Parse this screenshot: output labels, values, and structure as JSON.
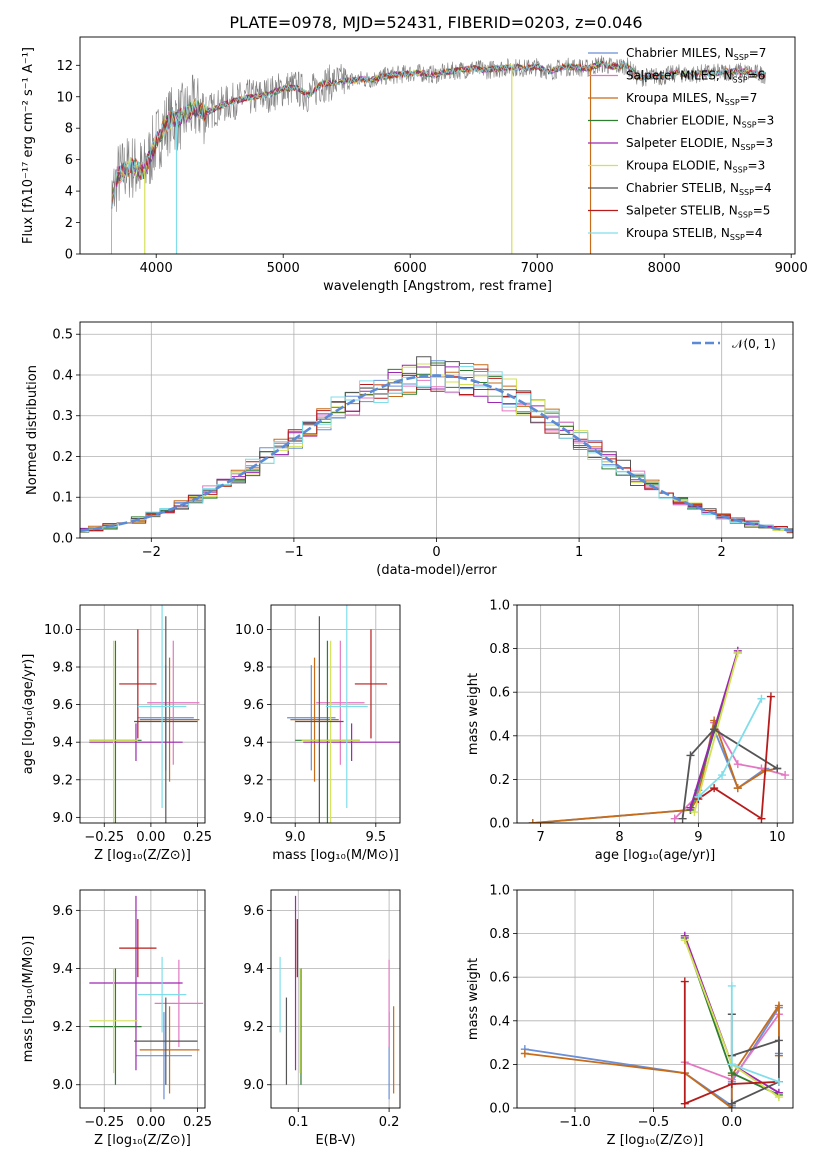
{
  "chart_data": [
    {
      "id": "spectrum",
      "type": "line",
      "title": "PLATE=0978, MJD=52431, FIBERID=0203, z=0.046",
      "xlabel": "wavelength [Angstrom, rest frame]",
      "ylabel": "Flux [fλ10⁻¹⁷ erg cm⁻² s⁻¹ A⁻¹]",
      "xlim": [
        3400,
        9030
      ],
      "ylim": [
        0,
        13.8
      ],
      "xticks": [
        4000,
        5000,
        6000,
        7000,
        8000,
        9000
      ],
      "yticks": [
        0,
        2,
        4,
        6,
        8,
        10,
        12
      ],
      "data_series_name": "",
      "data_envelope": [
        [
          3650,
          3.5
        ],
        [
          3700,
          5.0
        ],
        [
          3800,
          5.6
        ],
        [
          3900,
          5.2
        ],
        [
          4000,
          7.2
        ],
        [
          4100,
          8.5
        ],
        [
          4200,
          8.7
        ],
        [
          4300,
          9.3
        ],
        [
          4400,
          9.0
        ],
        [
          4500,
          9.4
        ],
        [
          4600,
          9.7
        ],
        [
          4700,
          9.9
        ],
        [
          4800,
          10.0
        ],
        [
          4900,
          10.2
        ],
        [
          5000,
          10.5
        ],
        [
          5100,
          10.6
        ],
        [
          5200,
          10.1
        ],
        [
          5300,
          10.8
        ],
        [
          5400,
          10.9
        ],
        [
          5500,
          11.0
        ],
        [
          5600,
          11.1
        ],
        [
          5700,
          11.1
        ],
        [
          5800,
          11.3
        ],
        [
          5900,
          11.4
        ],
        [
          6000,
          11.5
        ],
        [
          6100,
          11.5
        ],
        [
          6200,
          11.4
        ],
        [
          6300,
          11.6
        ],
        [
          6400,
          11.7
        ],
        [
          6500,
          11.8
        ],
        [
          6600,
          11.7
        ],
        [
          6700,
          11.8
        ],
        [
          6800,
          11.9
        ],
        [
          6900,
          11.8
        ],
        [
          7000,
          11.9
        ],
        [
          7100,
          11.6
        ],
        [
          7200,
          11.9
        ],
        [
          7300,
          11.9
        ],
        [
          7400,
          11.8
        ],
        [
          7500,
          12.1
        ],
        [
          7600,
          11.9
        ],
        [
          7700,
          12.0
        ],
        [
          7800,
          11.2
        ],
        [
          7900,
          11.3
        ],
        [
          8000,
          11.3
        ],
        [
          8100,
          11.5
        ],
        [
          8200,
          11.4
        ],
        [
          8300,
          11.5
        ],
        [
          8400,
          11.5
        ],
        [
          8500,
          11.6
        ],
        [
          8600,
          11.6
        ],
        [
          8700,
          11.5
        ],
        [
          8800,
          11.4
        ]
      ],
      "legend": [
        {
          "label": "Chabrier MILES, N",
          "sub": "SSP",
          "suffix": "=7",
          "color": "#6a8fd6"
        },
        {
          "label": "Salpeter MILES, N",
          "sub": "SSP",
          "suffix": "=6",
          "color": "#e377c2"
        },
        {
          "label": "Kroupa MILES, N",
          "sub": "SSP",
          "suffix": "=7",
          "color": "#c66c1a"
        },
        {
          "label": "Chabrier ELODIE, N",
          "sub": "SSP",
          "suffix": "=3",
          "color": "#2e7d32"
        },
        {
          "label": "Salpeter ELODIE, N",
          "sub": "SSP",
          "suffix": "=3",
          "color": "#9c27b0"
        },
        {
          "label": "Kroupa ELODIE, N",
          "sub": "SSP",
          "suffix": "=3",
          "color": "#d4e157"
        },
        {
          "label": "Chabrier STELIB, N",
          "sub": "SSP",
          "suffix": "=4",
          "color": "#555555"
        },
        {
          "label": "Salpeter STELIB, N",
          "sub": "SSP",
          "suffix": "=5",
          "color": "#b71c1c"
        },
        {
          "label": "Kroupa STELIB, N",
          "sub": "SSP",
          "suffix": "=4",
          "color": "#80deea"
        }
      ]
    },
    {
      "id": "residuals",
      "type": "histogram",
      "xlabel": "(data-model)/error",
      "ylabel": "Normed distribution",
      "xlim": [
        -2.5,
        2.5
      ],
      "ylim": [
        0,
        0.53
      ],
      "xticks": [
        -2,
        -1,
        0,
        1,
        2
      ],
      "yticks": [
        0.0,
        0.1,
        0.2,
        0.3,
        0.4,
        0.5
      ],
      "legend": "𝒩(0, 1)",
      "normal_curve": {
        "mean": 0,
        "sigma": 1
      }
    },
    {
      "id": "age-vs-Z",
      "type": "errorbar",
      "xlabel": "Z [log₁₀(Z/Z⊙)]",
      "ylabel": "age  [log₁₀(age/yr)]",
      "xlim": [
        -0.38,
        0.29
      ],
      "ylim": [
        8.97,
        10.13
      ],
      "xticks": [
        -0.25,
        0.0,
        0.25
      ],
      "yticks": [
        9.0,
        9.2,
        9.4,
        9.6,
        9.8,
        10.0
      ],
      "points": [
        {
          "model": "Chabrier MILES",
          "x": 0.08,
          "xerr": 0.15,
          "y": 9.53,
          "yerr": 0.28
        },
        {
          "model": "Salpeter MILES",
          "x": 0.12,
          "xerr": 0.14,
          "y": 9.61,
          "yerr": 0.33
        },
        {
          "model": "Kroupa MILES",
          "x": 0.1,
          "xerr": 0.16,
          "y": 9.52,
          "yerr": 0.33
        },
        {
          "model": "Chabrier ELODIE",
          "x": -0.19,
          "xerr": 0.14,
          "y": 9.41,
          "yerr": 0.53
        },
        {
          "model": "Salpeter ELODIE",
          "x": -0.08,
          "xerr": 0.25,
          "y": 9.4,
          "yerr": 0.1
        },
        {
          "model": "Kroupa ELODIE",
          "x": -0.2,
          "xerr": 0.13,
          "y": 9.41,
          "yerr": 0.53
        },
        {
          "model": "Chabrier STELIB",
          "x": 0.08,
          "xerr": 0.17,
          "y": 9.51,
          "yerr": 0.56
        },
        {
          "model": "Salpeter STELIB",
          "x": -0.07,
          "xerr": 0.1,
          "y": 9.71,
          "yerr": 0.29
        },
        {
          "model": "Kroupa STELIB",
          "x": 0.06,
          "xerr": 0.13,
          "y": 9.59,
          "yerr": 0.54
        }
      ]
    },
    {
      "id": "age-vs-mass",
      "type": "errorbar",
      "xlabel": "mass [log₁₀(M/M⊙)]",
      "ylabel": "",
      "xlim": [
        8.85,
        9.65
      ],
      "ylim": [
        8.97,
        10.13
      ],
      "xticks": [
        9.0,
        9.5
      ],
      "yticks": [
        9.0,
        9.2,
        9.4,
        9.6,
        9.8,
        10.0
      ],
      "points": [
        {
          "model": "Chabrier MILES",
          "x": 9.1,
          "xerr": 0.15,
          "y": 9.53,
          "yerr": 0.28
        },
        {
          "model": "Salpeter MILES",
          "x": 9.28,
          "xerr": 0.15,
          "y": 9.61,
          "yerr": 0.33
        },
        {
          "model": "Kroupa MILES",
          "x": 9.12,
          "xerr": 0.15,
          "y": 9.52,
          "yerr": 0.33
        },
        {
          "model": "Chabrier ELODIE",
          "x": 9.2,
          "xerr": 0.2,
          "y": 9.41,
          "yerr": 0.53
        },
        {
          "model": "Salpeter ELODIE",
          "x": 9.35,
          "xerr": 0.3,
          "y": 9.4,
          "yerr": 0.1
        },
        {
          "model": "Kroupa ELODIE",
          "x": 9.22,
          "xerr": 0.18,
          "y": 9.41,
          "yerr": 0.53
        },
        {
          "model": "Chabrier STELIB",
          "x": 9.15,
          "xerr": 0.15,
          "y": 9.51,
          "yerr": 0.56
        },
        {
          "model": "Salpeter STELIB",
          "x": 9.47,
          "xerr": 0.1,
          "y": 9.71,
          "yerr": 0.29
        },
        {
          "model": "Kroupa STELIB",
          "x": 9.32,
          "xerr": 0.13,
          "y": 9.59,
          "yerr": 0.54
        }
      ]
    },
    {
      "id": "weight-vs-age",
      "type": "line",
      "xlabel": "age  [log₁₀(age/yr)]",
      "ylabel": "mass weight",
      "xlim": [
        6.7,
        10.2
      ],
      "ylim": [
        0,
        1.0
      ],
      "xticks": [
        7,
        8,
        9,
        10
      ],
      "yticks": [
        0.0,
        0.2,
        0.4,
        0.6,
        0.8,
        1.0
      ],
      "series": [
        {
          "model": "Chabrier MILES",
          "points": [
            [
              6.9,
              0.0
            ],
            [
              8.9,
              0.06
            ],
            [
              9.0,
              0.15
            ],
            [
              9.2,
              0.43
            ],
            [
              9.5,
              0.16
            ],
            [
              9.85,
              0.25
            ]
          ]
        },
        {
          "model": "Salpeter MILES",
          "points": [
            [
              8.7,
              0.02
            ],
            [
              9.0,
              0.13
            ],
            [
              9.2,
              0.46
            ],
            [
              9.5,
              0.27
            ],
            [
              9.8,
              0.25
            ],
            [
              10.1,
              0.22
            ]
          ]
        },
        {
          "model": "Kroupa MILES",
          "points": [
            [
              6.9,
              0.0
            ],
            [
              8.9,
              0.06
            ],
            [
              9.0,
              0.12
            ],
            [
              9.2,
              0.47
            ],
            [
              9.5,
              0.16
            ],
            [
              9.85,
              0.24
            ],
            [
              10.0,
              0.25
            ]
          ]
        },
        {
          "model": "Chabrier ELODIE",
          "points": [
            [
              8.9,
              0.06
            ],
            [
              9.5,
              0.78
            ]
          ]
        },
        {
          "model": "Salpeter ELODIE",
          "points": [
            [
              8.9,
              0.07
            ],
            [
              9.5,
              0.79
            ]
          ]
        },
        {
          "model": "Kroupa ELODIE",
          "points": [
            [
              8.95,
              0.05
            ],
            [
              9.5,
              0.78
            ]
          ]
        },
        {
          "model": "Chabrier STELIB",
          "points": [
            [
              8.8,
              0.02
            ],
            [
              8.9,
              0.31
            ],
            [
              9.2,
              0.43
            ],
            [
              10.0,
              0.25
            ]
          ]
        },
        {
          "model": "Salpeter STELIB",
          "points": [
            [
              9.0,
              0.11
            ],
            [
              9.2,
              0.16
            ],
            [
              9.8,
              0.02
            ],
            [
              9.92,
              0.58
            ]
          ]
        },
        {
          "model": "Kroupa STELIB",
          "points": [
            [
              9.0,
              0.12
            ],
            [
              9.3,
              0.22
            ],
            [
              9.8,
              0.57
            ]
          ]
        }
      ]
    },
    {
      "id": "mass-vs-Z",
      "type": "errorbar",
      "xlabel": "Z [log₁₀(Z/Z⊙)]",
      "ylabel": "mass [log₁₀(M/M⊙)]",
      "xlim": [
        -0.38,
        0.29
      ],
      "ylim": [
        8.92,
        9.67
      ],
      "xticks": [
        -0.25,
        0.0,
        0.25
      ],
      "yticks": [
        9.0,
        9.2,
        9.4,
        9.6
      ],
      "points": [
        {
          "model": "Chabrier MILES",
          "x": 0.07,
          "xerr": 0.15,
          "y": 9.1,
          "yerr": 0.15
        },
        {
          "model": "Salpeter MILES",
          "x": 0.15,
          "xerr": 0.13,
          "y": 9.28,
          "yerr": 0.15
        },
        {
          "model": "Kroupa MILES",
          "x": 0.1,
          "xerr": 0.16,
          "y": 9.12,
          "yerr": 0.15
        },
        {
          "model": "Chabrier ELODIE",
          "x": -0.19,
          "xerr": 0.14,
          "y": 9.2,
          "yerr": 0.2
        },
        {
          "model": "Salpeter ELODIE",
          "x": -0.08,
          "xerr": 0.25,
          "y": 9.35,
          "yerr": 0.3
        },
        {
          "model": "Kroupa ELODIE",
          "x": -0.2,
          "xerr": 0.13,
          "y": 9.22,
          "yerr": 0.18
        },
        {
          "model": "Chabrier STELIB",
          "x": 0.08,
          "xerr": 0.17,
          "y": 9.15,
          "yerr": 0.15
        },
        {
          "model": "Salpeter STELIB",
          "x": -0.07,
          "xerr": 0.1,
          "y": 9.47,
          "yerr": 0.1
        },
        {
          "model": "Kroupa STELIB",
          "x": 0.06,
          "xerr": 0.13,
          "y": 9.31,
          "yerr": 0.13
        }
      ]
    },
    {
      "id": "mass-vs-ebv",
      "type": "errorbar",
      "xlabel": "E(B-V)",
      "ylabel": "",
      "xlim": [
        0.07,
        0.212
      ],
      "ylim": [
        8.92,
        9.67
      ],
      "xticks": [
        0.1,
        0.2
      ],
      "yticks": [
        9.0,
        9.2,
        9.4,
        9.6
      ],
      "points": [
        {
          "model": "Chabrier MILES",
          "x": 0.2,
          "y": 9.1,
          "yerr": 0.15
        },
        {
          "model": "Salpeter MILES",
          "x": 0.2,
          "y": 9.28,
          "yerr": 0.15
        },
        {
          "model": "Kroupa MILES",
          "x": 0.205,
          "y": 9.12,
          "yerr": 0.15
        },
        {
          "model": "Chabrier ELODIE",
          "x": 0.103,
          "y": 9.2,
          "yerr": 0.2
        },
        {
          "model": "Salpeter ELODIE",
          "x": 0.097,
          "y": 9.35,
          "yerr": 0.3
        },
        {
          "model": "Kroupa ELODIE",
          "x": 0.102,
          "y": 9.22,
          "yerr": 0.18
        },
        {
          "model": "Chabrier STELIB",
          "x": 0.087,
          "y": 9.15,
          "yerr": 0.15
        },
        {
          "model": "Salpeter STELIB",
          "x": 0.099,
          "y": 9.47,
          "yerr": 0.1
        },
        {
          "model": "Kroupa STELIB",
          "x": 0.08,
          "y": 9.31,
          "yerr": 0.13
        }
      ]
    },
    {
      "id": "weight-vs-Z",
      "type": "line",
      "xlabel": "Z [log₁₀(Z/Z⊙)]",
      "ylabel": "mass weight",
      "xlim": [
        -1.37,
        0.39
      ],
      "ylim": [
        0,
        1.0
      ],
      "xticks": [
        -1.0,
        -0.5,
        0.0
      ],
      "yticks": [
        0.0,
        0.2,
        0.4,
        0.6,
        0.8,
        1.0
      ],
      "series": [
        {
          "model": "Chabrier MILES",
          "points": [
            [
              -1.32,
              0.27
            ],
            [
              -0.3,
              0.16
            ],
            [
              0.0,
              0.01
            ],
            [
              0.0,
              0.12
            ],
            [
              0.3,
              0.46
            ],
            [
              0.3,
              0.25
            ]
          ]
        },
        {
          "model": "Salpeter MILES",
          "points": [
            [
              -0.3,
              0.21
            ],
            [
              0.0,
              0.13
            ],
            [
              0.3,
              0.43
            ]
          ]
        },
        {
          "model": "Kroupa MILES",
          "points": [
            [
              -1.32,
              0.25
            ],
            [
              -0.3,
              0.16
            ],
            [
              0.0,
              0.0
            ],
            [
              0.0,
              0.15
            ],
            [
              0.3,
              0.47
            ],
            [
              0.3,
              0.24
            ]
          ]
        },
        {
          "model": "Chabrier ELODIE",
          "points": [
            [
              -0.3,
              0.78
            ],
            [
              0.0,
              0.16
            ],
            [
              0.3,
              0.06
            ]
          ]
        },
        {
          "model": "Salpeter ELODIE",
          "points": [
            [
              -0.3,
              0.79
            ],
            [
              0.0,
              0.2
            ],
            [
              0.3,
              0.07
            ]
          ]
        },
        {
          "model": "Kroupa ELODIE",
          "points": [
            [
              -0.3,
              0.77
            ],
            [
              0.0,
              0.2
            ],
            [
              0.3,
              0.05
            ]
          ]
        },
        {
          "model": "Chabrier STELIB",
          "points": [
            [
              0.0,
              0.43
            ],
            [
              0.0,
              0.24
            ],
            [
              0.3,
              0.31
            ],
            [
              0.3,
              0.12
            ],
            [
              0.0,
              0.02
            ]
          ]
        },
        {
          "model": "Salpeter STELIB",
          "points": [
            [
              -0.3,
              0.58
            ],
            [
              -0.3,
              0.02
            ],
            [
              0.0,
              0.11
            ],
            [
              0.3,
              0.12
            ]
          ]
        },
        {
          "model": "Kroupa STELIB",
          "points": [
            [
              0.0,
              0.56
            ],
            [
              0.0,
              0.2
            ],
            [
              0.3,
              0.12
            ]
          ]
        }
      ]
    }
  ]
}
